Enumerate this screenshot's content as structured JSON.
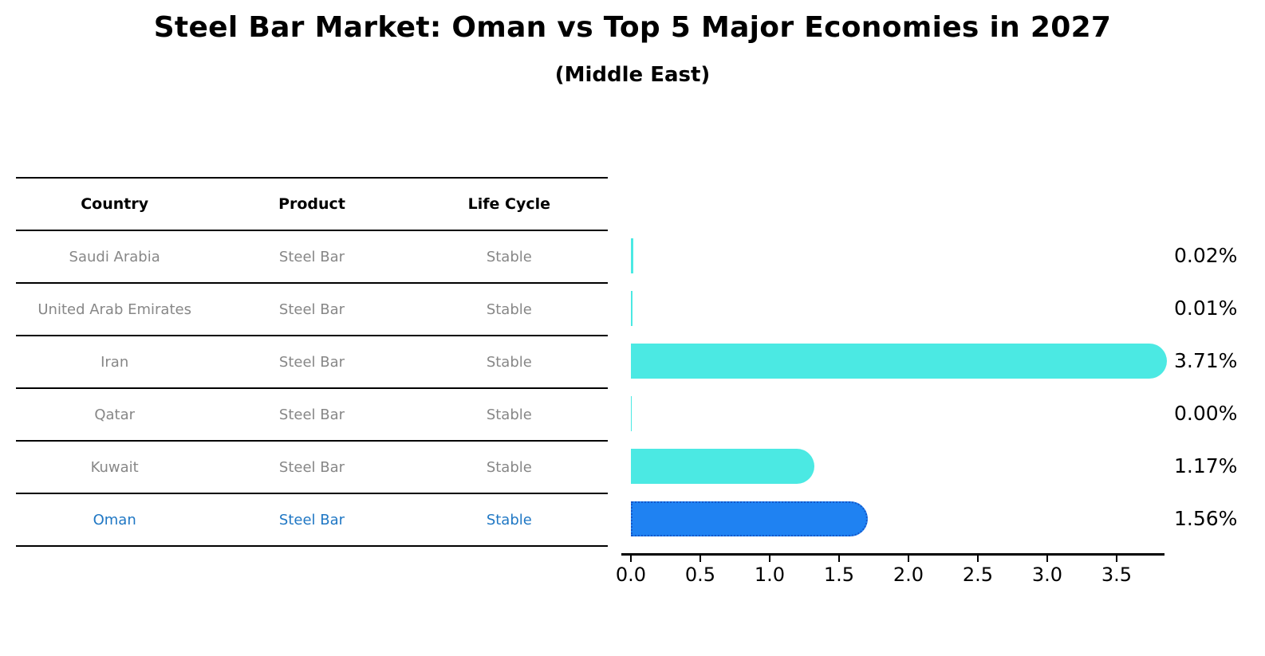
{
  "title": "Steel Bar Market: Oman vs Top 5 Major Economies in 2027",
  "subtitle": "(Middle East)",
  "table": {
    "headers": [
      "Country",
      "Product",
      "Life Cycle"
    ],
    "rows": [
      {
        "country": "Saudi Arabia",
        "product": "Steel Bar",
        "life_cycle": "Stable",
        "highlight": false
      },
      {
        "country": "United Arab Emirates",
        "product": "Steel Bar",
        "life_cycle": "Stable",
        "highlight": false
      },
      {
        "country": "Iran",
        "product": "Steel Bar",
        "life_cycle": "Stable",
        "highlight": false
      },
      {
        "country": "Qatar",
        "product": "Steel Bar",
        "life_cycle": "Stable",
        "highlight": false
      },
      {
        "country": "Kuwait",
        "product": "Steel Bar",
        "life_cycle": "Stable",
        "highlight": false
      },
      {
        "country": "Oman",
        "product": "Steel Bar",
        "life_cycle": "Stable",
        "highlight": true
      }
    ]
  },
  "chart_data": {
    "type": "bar",
    "orientation": "horizontal",
    "title": "Steel Bar Market: Oman vs Top 5 Major Economies in 2027",
    "subtitle": "(Middle East)",
    "categories": [
      "Saudi Arabia",
      "United Arab Emirates",
      "Iran",
      "Qatar",
      "Kuwait",
      "Oman"
    ],
    "values": [
      0.02,
      0.01,
      3.71,
      0.0,
      1.17,
      1.56
    ],
    "value_labels": [
      "0.02%",
      "0.01%",
      "3.71%",
      "0.00%",
      "1.17%",
      "1.56%"
    ],
    "x_ticks": [
      0.0,
      0.5,
      1.0,
      1.5,
      2.0,
      2.5,
      3.0,
      3.5
    ],
    "x_tick_labels": [
      "0.0",
      "0.5",
      "1.0",
      "1.5",
      "2.0",
      "2.5",
      "3.0",
      "3.5"
    ],
    "xlim": [
      0,
      3.9
    ],
    "grid": false,
    "legend": false,
    "highlight_index": 5,
    "colors": {
      "bar": "#4BE9E3",
      "highlight_bar": "#1F82F2",
      "highlight_bar_border": "#1457C9",
      "highlight_text": "#1F77C4",
      "text": "#000000",
      "muted_text": "#878787"
    }
  }
}
